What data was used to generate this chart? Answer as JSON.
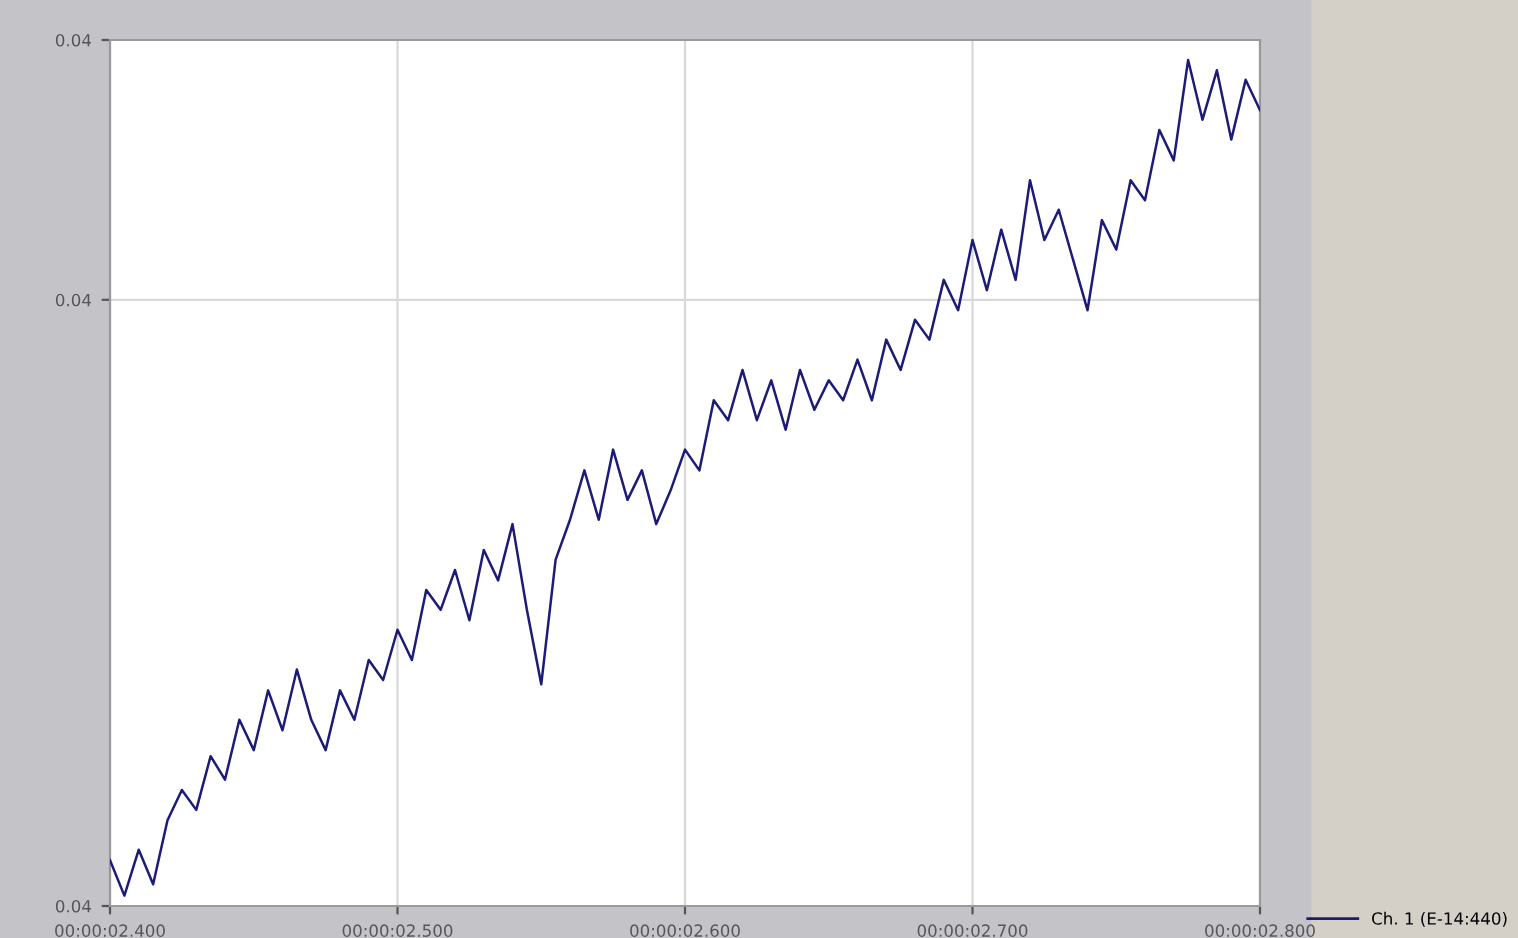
{
  "chart_data": {
    "type": "line",
    "categories": [
      "00:00:02.400",
      null,
      null,
      null,
      null,
      null,
      null,
      null,
      null,
      null,
      null,
      null,
      null,
      null,
      null,
      null,
      null,
      null,
      null,
      null,
      "00:00:02.500",
      null,
      null,
      null,
      null,
      null,
      null,
      null,
      null,
      null,
      null,
      null,
      null,
      null,
      null,
      null,
      null,
      null,
      null,
      null,
      "00:00:02.600",
      null,
      null,
      null,
      null,
      null,
      null,
      null,
      null,
      null,
      null,
      null,
      null,
      null,
      null,
      null,
      null,
      null,
      null,
      null,
      "00:00:02.700",
      null,
      null,
      null,
      null,
      null,
      null,
      null,
      null,
      null,
      null,
      null,
      null,
      null,
      null,
      null,
      null,
      null,
      null,
      null,
      "00:00:02.800"
    ],
    "ylim": [
      0.035,
      0.045
    ],
    "yticks": [
      {
        "value": 0.035,
        "label": "0.04"
      },
      {
        "value": 0.042,
        "label": "0.04"
      },
      {
        "value": 0.045,
        "label": "0.04"
      }
    ],
    "grid": true,
    "legend": "bottom right",
    "marker": "none",
    "line_style": "solid",
    "series": [
      {
        "name": "Ch. 1 (E-14:440)",
        "color": "#1c1c78",
        "values": [
          0.03553,
          0.03512,
          0.03565,
          0.03525,
          0.03599,
          0.03634,
          0.03611,
          0.03673,
          0.03646,
          0.03715,
          0.0368,
          0.03749,
          0.03703,
          0.03773,
          0.03715,
          0.0368,
          0.03749,
          0.03715,
          0.03784,
          0.03761,
          0.03819,
          0.03784,
          0.03865,
          0.03842,
          0.03888,
          0.0383,
          0.03911,
          0.03876,
          0.03941,
          0.03842,
          0.03756,
          0.039,
          0.03946,
          0.04003,
          0.03946,
          0.04027,
          0.03969,
          0.04003,
          0.03941,
          0.0398,
          0.04027,
          0.04003,
          0.04084,
          0.04061,
          0.04119,
          0.04061,
          0.04107,
          0.0405,
          0.04119,
          0.04073,
          0.04107,
          0.04084,
          0.04131,
          0.04084,
          0.04154,
          0.04119,
          0.04177,
          0.04154,
          0.04223,
          0.04188,
          0.04269,
          0.04211,
          0.04281,
          0.04223,
          0.04338,
          0.04269,
          0.04304,
          0.04246,
          0.04188,
          0.04292,
          0.04258,
          0.04338,
          0.04315,
          0.04396,
          0.04361,
          0.04477,
          0.04408,
          0.04465,
          0.04385,
          0.04454,
          0.04419
        ]
      }
    ]
  }
}
